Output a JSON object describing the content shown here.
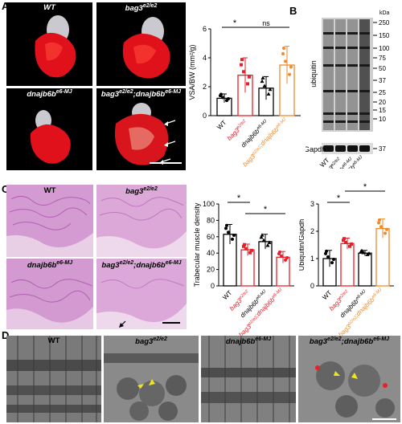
{
  "panels": {
    "A": "A",
    "B": "B",
    "C": "C",
    "D": "D"
  },
  "genotypes": {
    "wt": "WT",
    "bag3": "bag3",
    "bag3_sup": "e2/e2",
    "dnajb6b": "dnajb6b",
    "dnajb6b_sup": "e6-MJ",
    "double_sep": ";"
  },
  "colors": {
    "wt": "#000000",
    "bag3": "#e8202a",
    "dnajb6b": "#000000",
    "double": "#f08a2c",
    "double_C": "#e8202a"
  },
  "chart_data": [
    {
      "type": "bar",
      "panel": "A",
      "categories": [
        "WT",
        "bag3e2/e2",
        "dnajb6be6-MJ",
        "bag3e2/e2;dnajb6be6-MJ"
      ],
      "values": [
        1.2,
        2.8,
        1.9,
        3.5
      ],
      "errors": [
        0.3,
        1.2,
        0.8,
        1.3
      ],
      "ylabel": "VSA/BW (mm²/g)",
      "ylim": [
        0,
        6
      ],
      "yticks": [
        0,
        2,
        4,
        6
      ],
      "significance": [
        {
          "from": 0,
          "to": 1,
          "label": "*"
        },
        {
          "from": 1,
          "to": 3,
          "label": "ns"
        }
      ]
    },
    {
      "type": "bar",
      "panel": "C",
      "categories": [
        "WT",
        "bag3e2/e2",
        "dnajb6be6-MJ",
        "bag3e2/e2;dnajb6be6-MJ"
      ],
      "values": [
        63,
        44,
        54,
        35
      ],
      "errors": [
        12,
        7,
        9,
        7
      ],
      "ylabel": "Trabecular muscle density",
      "ylim": [
        0,
        100
      ],
      "yticks": [
        0,
        20,
        40,
        60,
        80,
        100
      ],
      "significance": [
        {
          "from": 0,
          "to": 1,
          "label": "*"
        },
        {
          "from": 1,
          "to": 3,
          "label": "*"
        }
      ]
    },
    {
      "type": "bar",
      "panel": "C",
      "categories": [
        "WT",
        "bag3e2/e2",
        "dnajb6be6-MJ",
        "bag3e2/e2;dnajb6be6-MJ"
      ],
      "values": [
        1.0,
        1.55,
        1.2,
        2.1
      ],
      "errors": [
        0.3,
        0.2,
        0.1,
        0.35
      ],
      "ylabel": "Ubiquitin/Gapdh",
      "ylim": [
        0,
        3
      ],
      "yticks": [
        0,
        1,
        2,
        3
      ],
      "significance": [
        {
          "from": 0,
          "to": 1,
          "label": "*"
        },
        {
          "from": 1,
          "to": 3,
          "label": "*"
        }
      ]
    }
  ],
  "blot": {
    "title": "ubiquitin",
    "loading": "Gapdh",
    "unit": "kDa",
    "markers": [
      "250",
      "150",
      "100",
      "75",
      "50",
      "37",
      "25",
      "20",
      "15",
      "10",
      "37"
    ]
  }
}
